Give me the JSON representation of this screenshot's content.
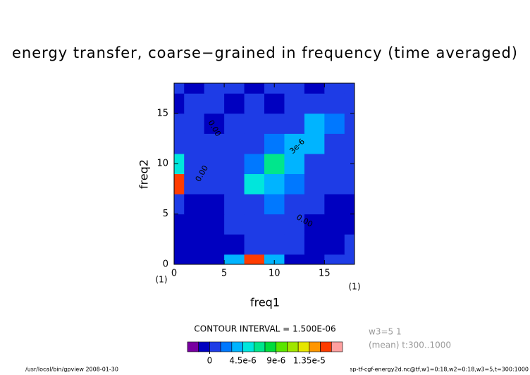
{
  "chart_data": {
    "type": "contour",
    "title": "energy transfer, coarse−grained in frequency (time averaged)",
    "xlabel": "freq1",
    "ylabel": "freq2",
    "xunit": "(1)",
    "yunit": "(1)",
    "xlim": [
      0,
      18
    ],
    "ylim": [
      0,
      18
    ],
    "xticks": [
      0,
      5,
      10,
      15
    ],
    "yticks": [
      0,
      5,
      10,
      15
    ],
    "x": [
      0,
      2,
      4,
      6,
      8,
      10,
      12,
      14,
      16,
      18
    ],
    "y": [
      0,
      2,
      4,
      6,
      8,
      10,
      12,
      14,
      16,
      18
    ],
    "z": [
      [
        -5e-07,
        -5e-07,
        -5e-07,
        4e-06,
        1.5e-05,
        4e-06,
        -5e-07,
        -5e-07,
        1e-06,
        1e-06
      ],
      [
        -5e-07,
        -5e-07,
        -5e-07,
        -5e-07,
        1e-06,
        1e-06,
        1e-06,
        -5e-07,
        -5e-07,
        1e-06
      ],
      [
        -5e-07,
        -5e-07,
        -5e-07,
        1e-06,
        1e-06,
        1e-06,
        1e-06,
        -5e-07,
        -5e-07,
        -5e-07
      ],
      [
        1e-06,
        -5e-07,
        -5e-07,
        1e-06,
        1e-06,
        2e-06,
        1e-06,
        1e-06,
        -5e-07,
        -5e-07
      ],
      [
        1.5e-05,
        1e-06,
        1e-06,
        1e-06,
        5e-06,
        3.5e-06,
        2e-06,
        1e-06,
        1e-06,
        1e-06
      ],
      [
        5e-06,
        1e-06,
        1e-06,
        1e-06,
        2e-06,
        7e-06,
        3.5e-06,
        1e-06,
        1e-06,
        1e-06
      ],
      [
        1e-06,
        1e-06,
        1e-06,
        1e-06,
        1e-06,
        2e-06,
        3.5e-06,
        4e-06,
        1e-06,
        1e-06
      ],
      [
        1e-06,
        1e-06,
        -5e-07,
        1e-06,
        1e-06,
        1e-06,
        1e-06,
        3.5e-06,
        2e-06,
        1e-06
      ],
      [
        -5e-07,
        1e-06,
        1e-06,
        -5e-07,
        1e-06,
        -5e-07,
        1e-06,
        1e-06,
        1e-06,
        1e-06
      ],
      [
        1e-06,
        -5e-07,
        1e-06,
        1e-06,
        -5e-07,
        1e-06,
        1e-06,
        -5e-07,
        1e-06,
        1e-06
      ]
    ],
    "levels": [
      -3e-06,
      -1.5e-06,
      0,
      1.5e-06,
      3e-06,
      4.5e-06,
      6e-06,
      7.5e-06,
      9e-06,
      1.05e-05,
      1.2e-05,
      1.35e-05,
      1.5e-05,
      1.65e-05,
      1.8e-05
    ],
    "colors": [
      "#7800a0",
      "#0000c0",
      "#1e3ce6",
      "#0078ff",
      "#00b4ff",
      "#00e6dc",
      "#00e68c",
      "#00dc3c",
      "#5ae600",
      "#a0e600",
      "#e6e600",
      "#ff9600",
      "#ff3c00",
      "#ffa0a0"
    ],
    "colorbar_ticks": [
      0,
      {
        "value": 4.5e-06,
        "label": "4.5e-6"
      },
      {
        "value": 9e-06,
        "label": "9e-6"
      },
      {
        "value": 1.35e-05,
        "label": "1.35e-5"
      }
    ],
    "contour_labels": [
      "0.00",
      "0.00",
      "3e-6",
      "0.00"
    ],
    "contour_interval": "CONTOUR INTERVAL = 1.500E-06",
    "annotations": [
      "w3=5 1",
      "(mean) t:300..1000"
    ],
    "footer_left": "/usr/local/bin/gpview  2008-01-30",
    "footer_right": "sp-tf-cgf-energy2d.nc@tf,w1=0:18,w2=0:18,w3=5,t=300:1000"
  }
}
